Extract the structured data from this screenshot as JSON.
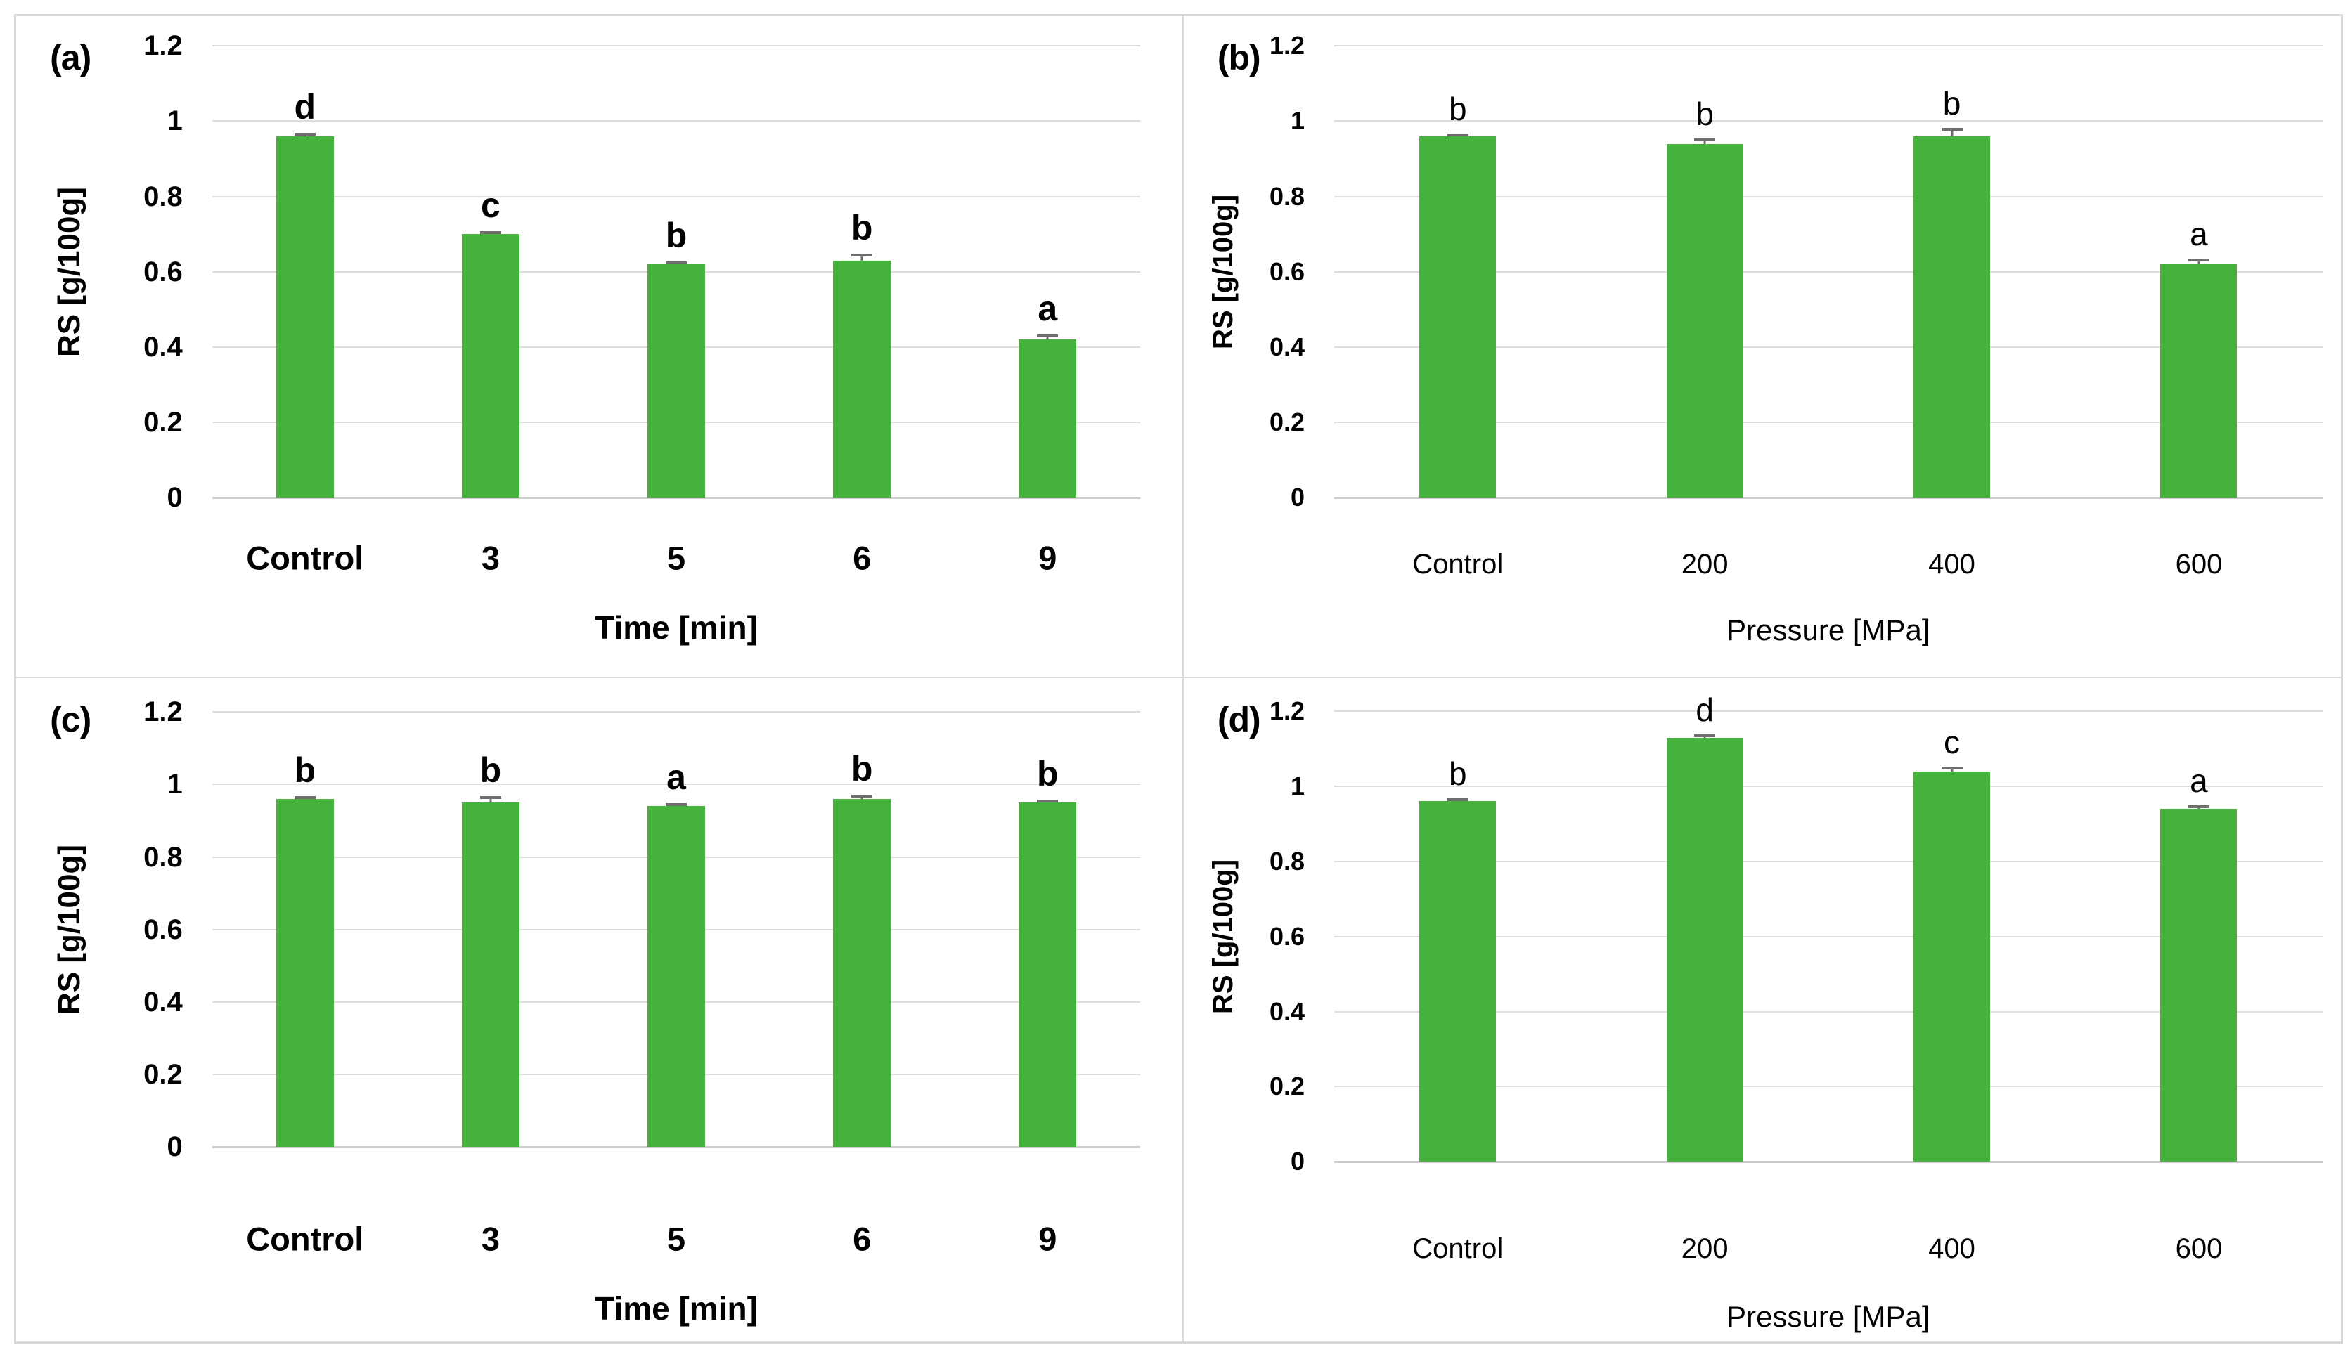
{
  "figure": {
    "bar_color": "#46b13c",
    "gridline_color": "#dedede",
    "baseline_color": "#cfcfcf",
    "error_bar_color": "#6e6e6e",
    "panel_border_color": "#d9d9d9",
    "text_color": "#000000"
  },
  "chart_data": [
    {
      "id": "a",
      "panel_label": "(a)",
      "type": "bar",
      "categories": [
        "Control",
        "3",
        "5",
        "6",
        "9"
      ],
      "values": [
        0.96,
        0.7,
        0.62,
        0.63,
        0.42
      ],
      "errors": [
        0.01,
        0.008,
        0.008,
        0.018,
        0.013
      ],
      "sig_letters": [
        "d",
        "c",
        "b",
        "b",
        "a"
      ],
      "xlabel": "Time [min]",
      "ylabel": "RS [g/100g]",
      "ylim": [
        0,
        1.2
      ],
      "ytick_step": 0.2,
      "yticks": [
        "0",
        "0.2",
        "0.4",
        "0.6",
        "0.8",
        "1",
        "1.2"
      ],
      "grid": true,
      "legend": "none"
    },
    {
      "id": "b",
      "panel_label": "(b)",
      "type": "bar",
      "categories": [
        "Control",
        "200",
        "400",
        "600"
      ],
      "values": [
        0.96,
        0.94,
        0.96,
        0.62
      ],
      "errors": [
        0.008,
        0.014,
        0.022,
        0.016
      ],
      "sig_letters": [
        "b",
        "b",
        "b",
        "a"
      ],
      "xlabel": "Pressure [MPa]",
      "ylabel": "RS [g/100g]",
      "ylim": [
        0,
        1.2
      ],
      "ytick_step": 0.2,
      "yticks": [
        "0",
        "0.2",
        "0.4",
        "0.6",
        "0.8",
        "1",
        "1.2"
      ],
      "grid": true,
      "legend": "none"
    },
    {
      "id": "c",
      "panel_label": "(c)",
      "type": "bar",
      "categories": [
        "Control",
        "3",
        "5",
        "6",
        "9"
      ],
      "values": [
        0.96,
        0.95,
        0.94,
        0.96,
        0.95
      ],
      "errors": [
        0.008,
        0.018,
        0.008,
        0.012,
        0.008
      ],
      "sig_letters": [
        "b",
        "b",
        "a",
        "b",
        "b"
      ],
      "xlabel": "Time [min]",
      "ylabel": "RS [g/100g]",
      "ylim": [
        0,
        1.2
      ],
      "ytick_step": 0.2,
      "yticks": [
        "0",
        "0.2",
        "0.4",
        "0.6",
        "0.8",
        "1",
        "1.2"
      ],
      "grid": true,
      "legend": "none"
    },
    {
      "id": "d",
      "panel_label": "(d)",
      "type": "bar",
      "categories": [
        "Control",
        "200",
        "400",
        "600"
      ],
      "values": [
        0.96,
        1.13,
        1.04,
        0.94
      ],
      "errors": [
        0.008,
        0.008,
        0.012,
        0.01
      ],
      "sig_letters": [
        "b",
        "d",
        "c",
        "a"
      ],
      "xlabel": "Pressure [MPa]",
      "ylabel": "RS [g/100g]",
      "ylim": [
        0,
        1.2
      ],
      "ytick_step": 0.2,
      "yticks": [
        "0",
        "0.2",
        "0.4",
        "0.6",
        "0.8",
        "1",
        "1.2"
      ],
      "grid": true,
      "legend": "none"
    }
  ]
}
